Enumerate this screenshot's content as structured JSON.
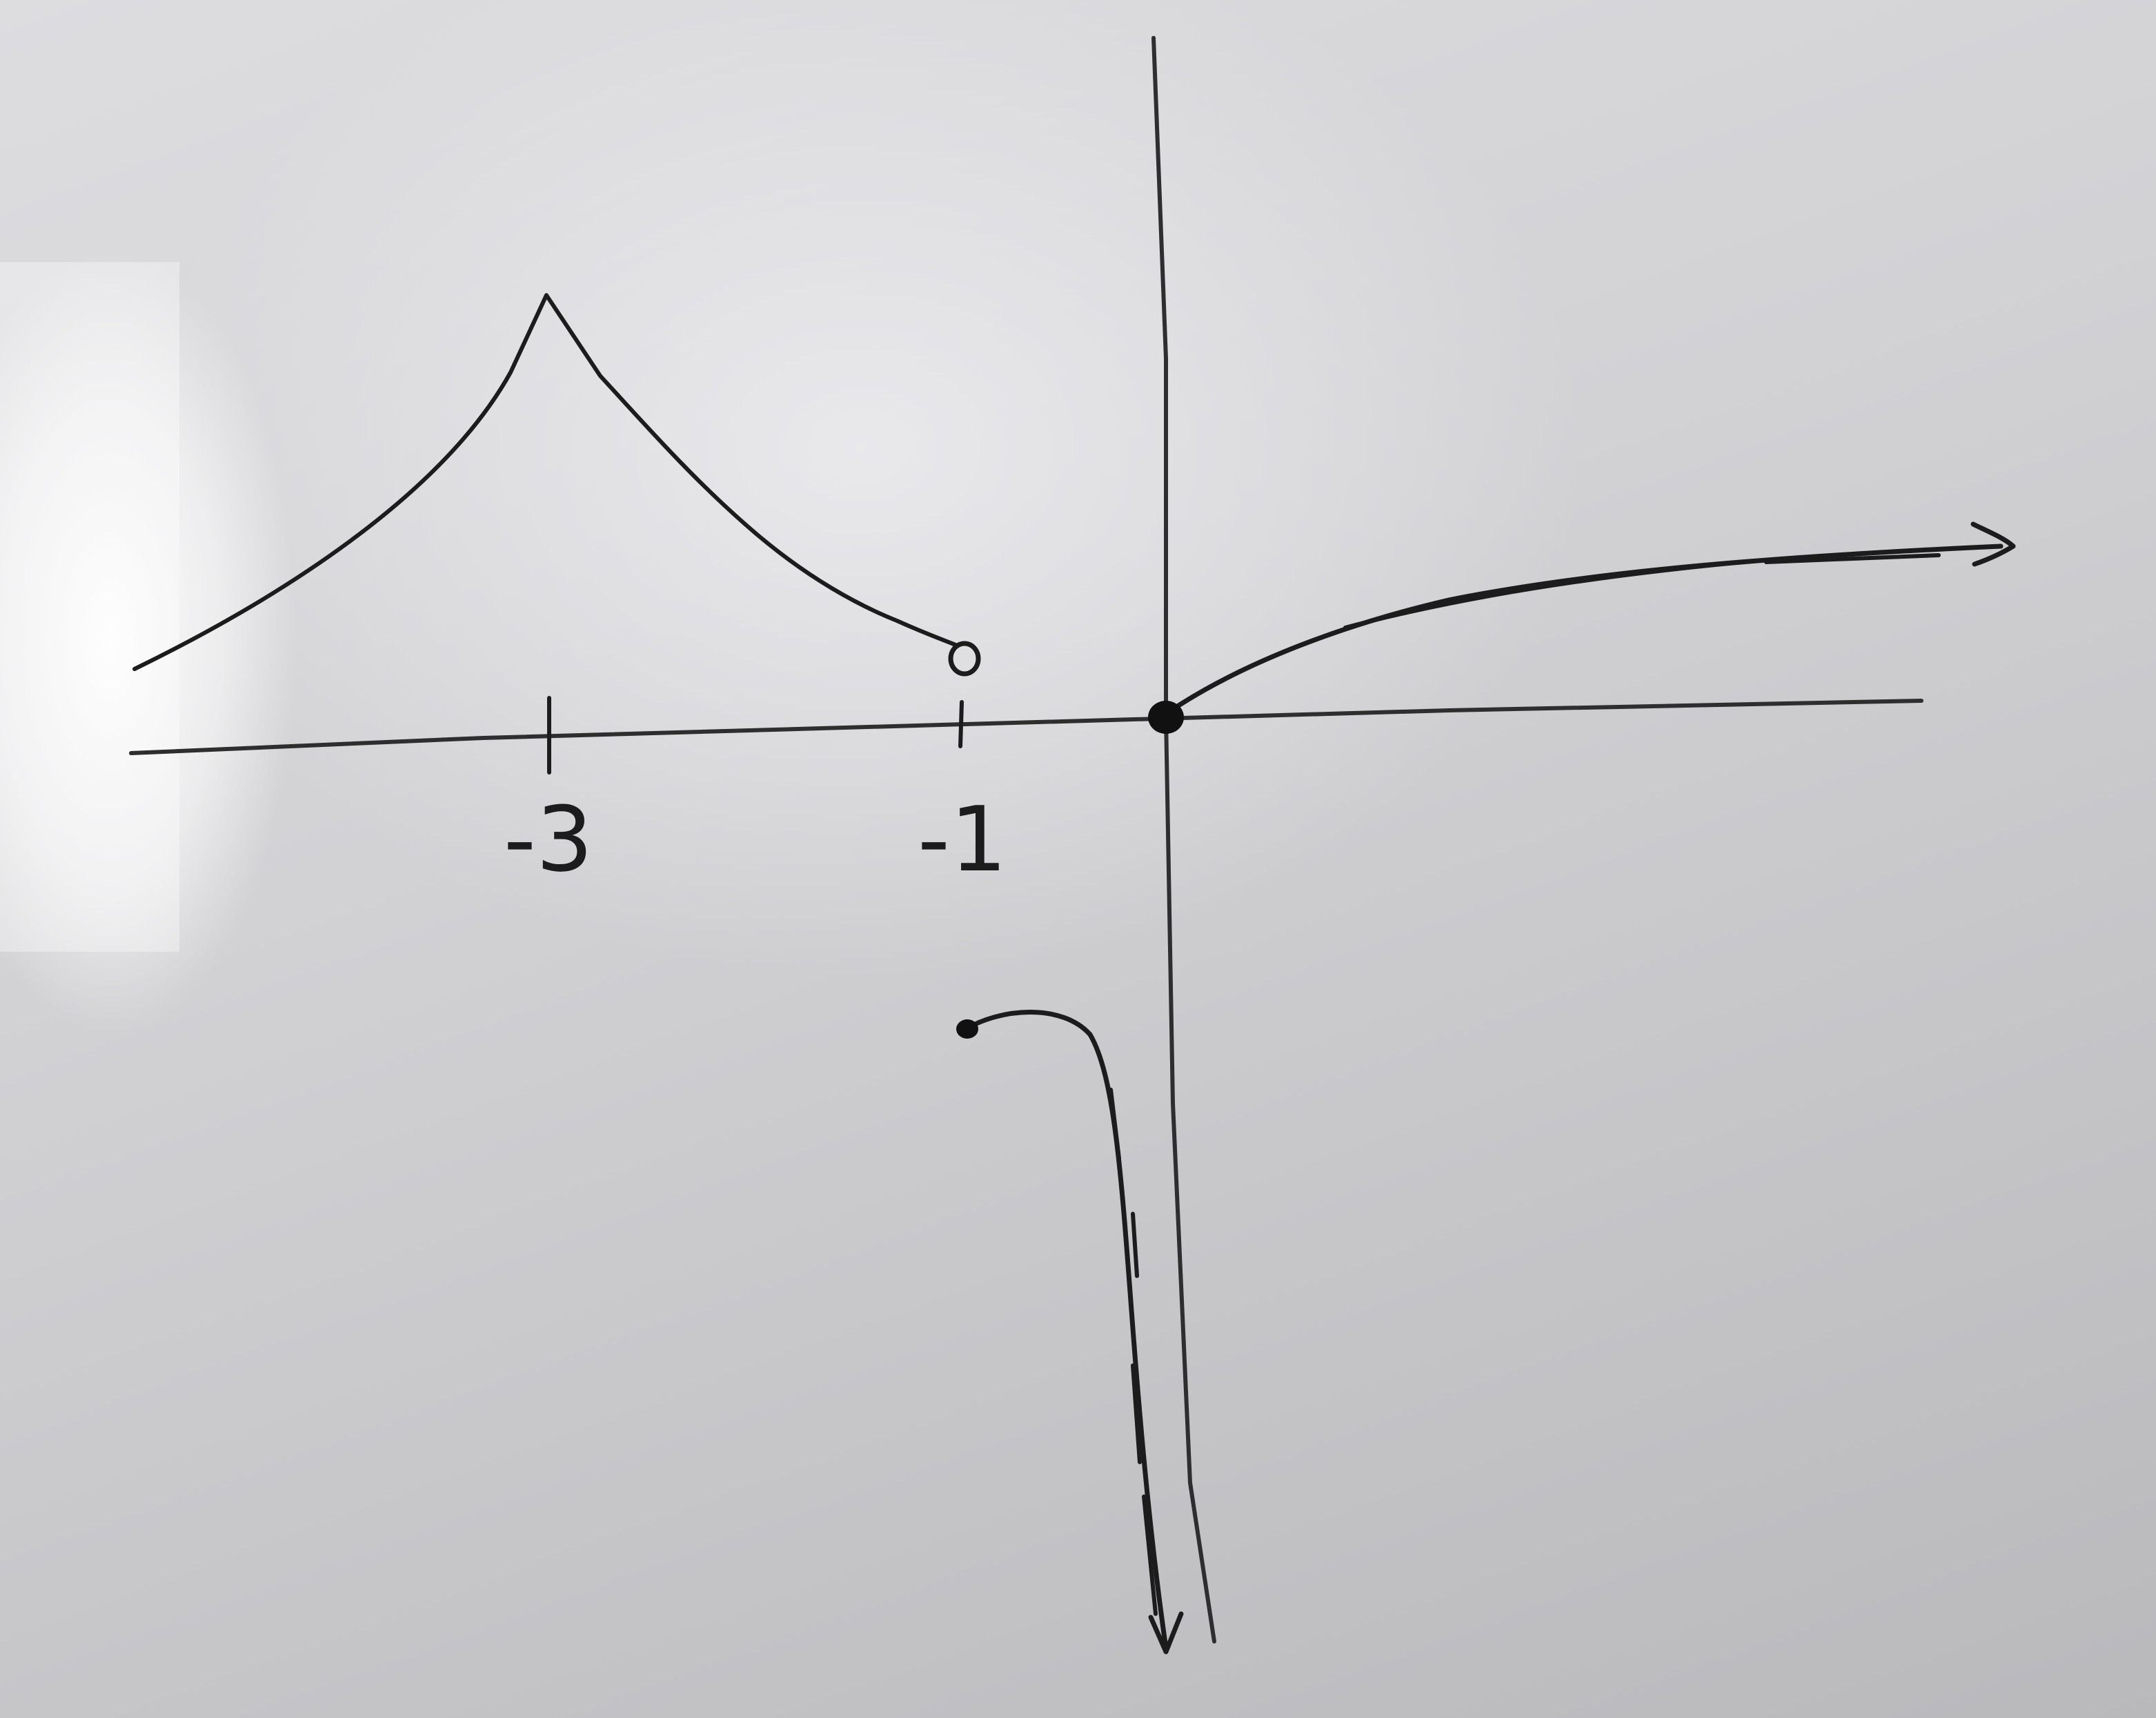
{
  "whiteboard_sketch": {
    "tick_labels": [
      "-3",
      "-1"
    ]
  }
}
